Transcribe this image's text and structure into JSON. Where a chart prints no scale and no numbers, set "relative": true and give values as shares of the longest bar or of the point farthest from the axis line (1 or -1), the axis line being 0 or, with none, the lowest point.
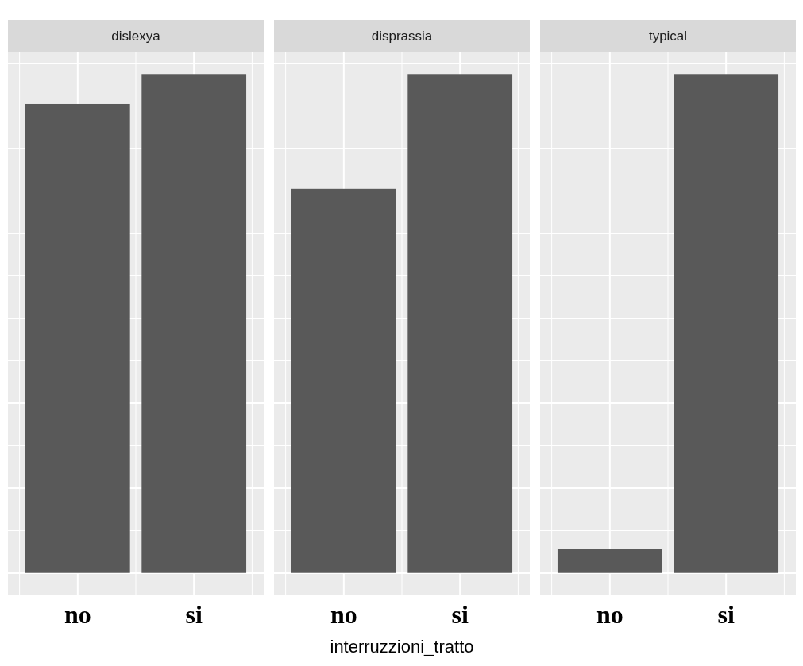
{
  "chart_data": [
    {
      "type": "bar",
      "title": "dislexya",
      "categories": [
        "no",
        "si"
      ],
      "values": [
        0.94,
        1
      ],
      "color": "#595959",
      "relative": true,
      "grid": true
    },
    {
      "type": "bar",
      "title": "disprassia",
      "xlabel": "interruzzioni_tratto",
      "categories": [
        "no",
        "si"
      ],
      "values": [
        0.77,
        1
      ],
      "color": "#595959",
      "relative": true,
      "grid": true
    },
    {
      "type": "bar",
      "title": "typical",
      "categories": [
        "no",
        "si"
      ],
      "values": [
        0.048,
        1
      ],
      "color": "#595959",
      "relative": true,
      "grid": true
    }
  ]
}
